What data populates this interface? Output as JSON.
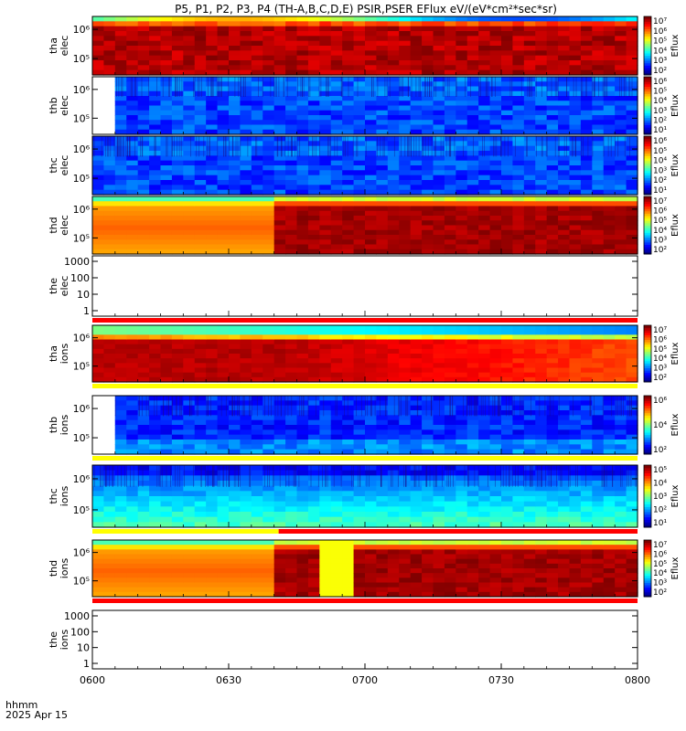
{
  "title": "P5, P1, P2, P3, P4 (TH-A,B,C,D,E) PSIR,PSER EFlux eV/(eV*cm²*sec*sr)",
  "footer": {
    "time_format": "hhmm",
    "date": "2025 Apr 15"
  },
  "colorbar_label": "Eflux",
  "chart_data": {
    "type": "heatmap",
    "x_axis": {
      "range": [
        "06:00",
        "08:00"
      ],
      "ticks": [
        "0600",
        "0630",
        "0700",
        "0730",
        "0800"
      ]
    },
    "panels": [
      {
        "id": "tha-elec",
        "ylabel": [
          "tha",
          "elec"
        ],
        "y_ticks": [
          "10⁵",
          "10⁶"
        ],
        "y_scale": "log",
        "cbar_ticks": [
          "10²",
          "10³",
          "10⁴",
          "10⁵",
          "10⁶",
          "10⁷"
        ],
        "data_gap_until": null,
        "profile": "hot",
        "step_at": null,
        "gap_window": null,
        "flags": {
          "top": null,
          "bottom": null
        }
      },
      {
        "id": "thb-elec",
        "ylabel": [
          "thb",
          "elec"
        ],
        "y_ticks": [
          "10⁵",
          "10⁶"
        ],
        "y_scale": "log",
        "cbar_ticks": [
          "10¹",
          "10²",
          "10³",
          "10⁴",
          "10⁵",
          "10⁶"
        ],
        "data_gap_until": "06:05",
        "profile": "cold",
        "step_at": null,
        "gap_window": null,
        "flags": {
          "top": null,
          "bottom": null
        }
      },
      {
        "id": "thc-elec",
        "ylabel": [
          "thc",
          "elec"
        ],
        "y_ticks": [
          "10⁵",
          "10⁶"
        ],
        "y_scale": "log",
        "cbar_ticks": [
          "10¹",
          "10²",
          "10³",
          "10⁴",
          "10⁵",
          "10⁶"
        ],
        "data_gap_until": null,
        "profile": "cold",
        "step_at": null,
        "gap_window": null,
        "flags": {
          "top": null,
          "bottom": null
        }
      },
      {
        "id": "thd-elec",
        "ylabel": [
          "thd",
          "elec"
        ],
        "y_ticks": [
          "10⁵",
          "10⁶"
        ],
        "y_scale": "log",
        "cbar_ticks": [
          "10²",
          "10³",
          "10⁴",
          "10⁵",
          "10⁶",
          "10⁷"
        ],
        "data_gap_until": null,
        "profile": "warm-then-hot",
        "step_at": "06:40",
        "gap_window": null,
        "flags": {
          "top": null,
          "bottom": null
        }
      },
      {
        "id": "the-elec",
        "ylabel": [
          "the",
          "elec"
        ],
        "y_ticks": [
          "1",
          "10",
          "100",
          "1000"
        ],
        "y_scale": "log",
        "cbar_ticks": [],
        "data_gap_until": null,
        "profile": "empty",
        "step_at": null,
        "gap_window": null,
        "flags": {
          "top": null,
          "bottom": "red"
        }
      },
      {
        "id": "tha-ions",
        "ylabel": [
          "tha",
          "ions"
        ],
        "y_ticks": [
          "10⁵",
          "10⁶"
        ],
        "y_scale": "log",
        "cbar_ticks": [
          "10²",
          "10³",
          "10⁴",
          "10⁵",
          "10⁶",
          "10⁷"
        ],
        "data_gap_until": null,
        "profile": "hot-fading",
        "step_at": null,
        "gap_window": null,
        "flags": {
          "top": null,
          "bottom": "yellow"
        }
      },
      {
        "id": "thb-ions",
        "ylabel": [
          "thb",
          "ions"
        ],
        "y_ticks": [
          "10⁵",
          "10⁶"
        ],
        "y_scale": "log",
        "cbar_ticks": [
          "10²",
          "10⁴",
          "10⁶"
        ],
        "data_gap_until": "06:05",
        "profile": "cold-ions",
        "step_at": null,
        "gap_window": null,
        "flags": {
          "top": null,
          "bottom": "yellow"
        }
      },
      {
        "id": "thc-ions",
        "ylabel": [
          "thc",
          "ions"
        ],
        "y_ticks": [
          "10⁵",
          "10⁶"
        ],
        "y_scale": "log",
        "cbar_ticks": [
          "10¹",
          "10²",
          "10³",
          "10⁴",
          "10⁵"
        ],
        "data_gap_until": null,
        "profile": "cold-ions-c",
        "step_at": null,
        "gap_window": null,
        "flags": {
          "top": null,
          "bottom": "yellow-red"
        }
      },
      {
        "id": "thd-ions",
        "ylabel": [
          "thd",
          "ions"
        ],
        "y_ticks": [
          "10⁵",
          "10⁶"
        ],
        "y_scale": "log",
        "cbar_ticks": [
          "10²",
          "10³",
          "10⁴",
          "10⁵",
          "10⁶",
          "10⁷"
        ],
        "data_gap_until": null,
        "profile": "warm-then-hot",
        "step_at": "06:40",
        "gap_window": [
          "06:51",
          "06:57"
        ],
        "flags": {
          "top": null,
          "bottom": "red"
        }
      },
      {
        "id": "the-ions",
        "ylabel": [
          "the",
          "ions"
        ],
        "y_ticks": [
          "1",
          "10",
          "100",
          "1000"
        ],
        "y_scale": "log",
        "cbar_ticks": [],
        "data_gap_until": null,
        "profile": "empty",
        "step_at": null,
        "gap_window": null,
        "flags": {
          "top": null,
          "bottom": null
        }
      }
    ],
    "flag_colors": {
      "red": "#ff0000",
      "yellow": "#ffff00"
    }
  }
}
